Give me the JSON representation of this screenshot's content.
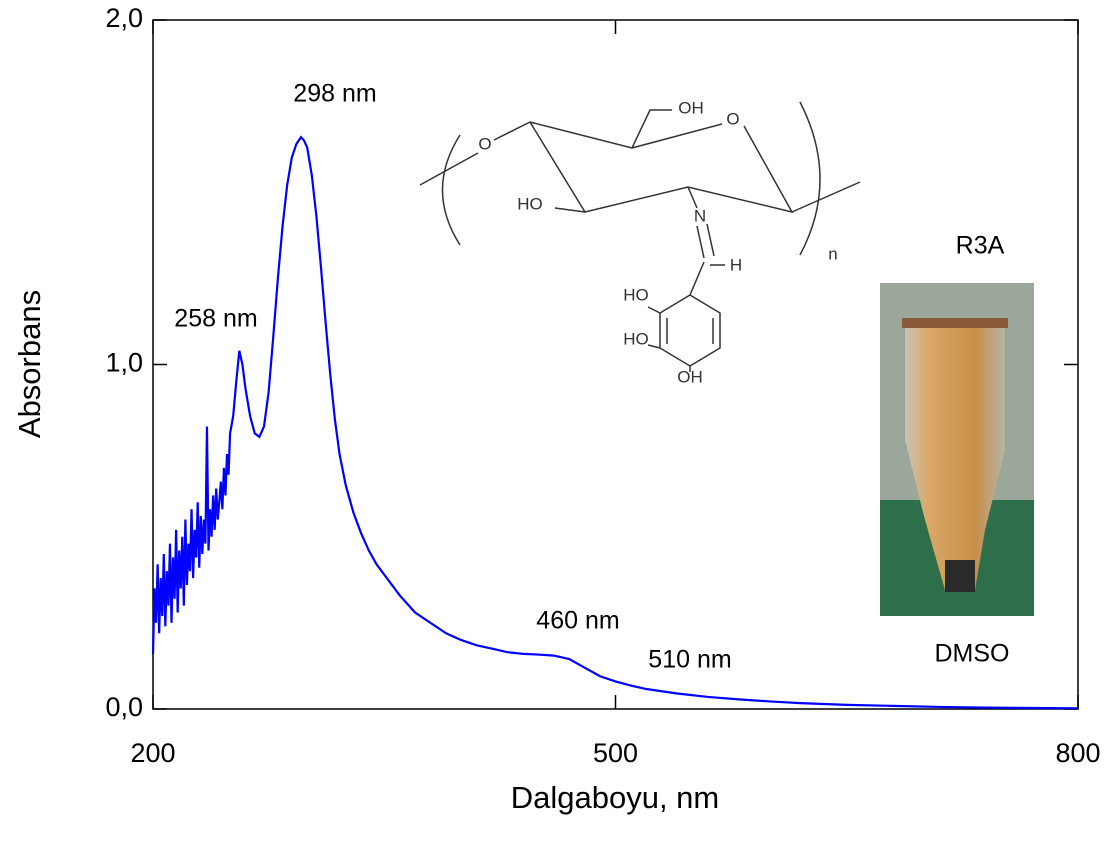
{
  "chart_data": {
    "type": "line",
    "xlabel": "Dalgaboyu, nm",
    "ylabel": "Absorbans",
    "xlim": [
      200,
      800
    ],
    "xticks": [
      200,
      500,
      800
    ],
    "ylim": [
      0,
      2
    ],
    "yticks": [
      {
        "value": 0,
        "label": "0,0"
      },
      {
        "value": 1,
        "label": "1,0"
      },
      {
        "value": 2,
        "label": "2,0"
      }
    ],
    "annotations": [
      "298 nm",
      "258 nm",
      "460 nm",
      "510 nm"
    ],
    "structure_labels": [
      "OH",
      "O",
      "O",
      "HO",
      "N",
      "H",
      "HO",
      "HO",
      "OH",
      "n"
    ],
    "photo_labels": [
      "R3A",
      "DMSO"
    ],
    "series": [
      {
        "color": "#0000ff",
        "x": [
          200,
          201,
          202,
          203,
          204,
          205,
          206,
          207,
          208,
          209,
          210,
          211,
          212,
          213,
          214,
          215,
          216,
          217,
          218,
          219,
          220,
          221,
          222,
          223,
          224,
          225,
          226,
          227,
          228,
          229,
          230,
          231,
          232,
          233,
          234,
          235,
          236,
          237,
          238,
          239,
          240,
          241,
          242,
          243,
          244,
          245,
          246,
          247,
          248,
          249,
          250,
          252,
          254,
          256,
          258,
          260,
          263,
          266,
          269,
          272,
          275,
          278,
          281,
          284,
          287,
          290,
          293,
          296,
          298,
          300,
          303,
          306,
          309,
          312,
          315,
          318,
          321,
          325,
          330,
          335,
          340,
          345,
          350,
          360,
          370,
          380,
          390,
          400,
          410,
          420,
          430,
          440,
          450,
          460,
          470,
          480,
          490,
          500,
          510,
          520,
          540,
          560,
          580,
          600,
          620,
          650,
          680,
          710,
          740,
          770,
          800
        ],
        "values": [
          0.16,
          0.35,
          0.25,
          0.42,
          0.22,
          0.38,
          0.27,
          0.45,
          0.24,
          0.4,
          0.3,
          0.48,
          0.25,
          0.44,
          0.32,
          0.52,
          0.28,
          0.46,
          0.35,
          0.5,
          0.3,
          0.55,
          0.36,
          0.48,
          0.4,
          0.58,
          0.38,
          0.52,
          0.44,
          0.6,
          0.41,
          0.56,
          0.45,
          0.55,
          0.48,
          0.82,
          0.46,
          0.58,
          0.5,
          0.62,
          0.52,
          0.64,
          0.55,
          0.6,
          0.66,
          0.58,
          0.7,
          0.62,
          0.74,
          0.68,
          0.8,
          0.85,
          0.95,
          1.04,
          1.0,
          0.93,
          0.85,
          0.8,
          0.79,
          0.82,
          0.92,
          1.08,
          1.25,
          1.4,
          1.52,
          1.6,
          1.64,
          1.66,
          1.65,
          1.63,
          1.55,
          1.43,
          1.28,
          1.12,
          0.97,
          0.84,
          0.74,
          0.65,
          0.57,
          0.51,
          0.46,
          0.42,
          0.39,
          0.33,
          0.28,
          0.25,
          0.22,
          0.2,
          0.185,
          0.175,
          0.165,
          0.16,
          0.158,
          0.155,
          0.145,
          0.12,
          0.095,
          0.08,
          0.068,
          0.058,
          0.045,
          0.035,
          0.028,
          0.022,
          0.017,
          0.012,
          0.009,
          0.006,
          0.004,
          0.003,
          0.002
        ]
      }
    ]
  }
}
